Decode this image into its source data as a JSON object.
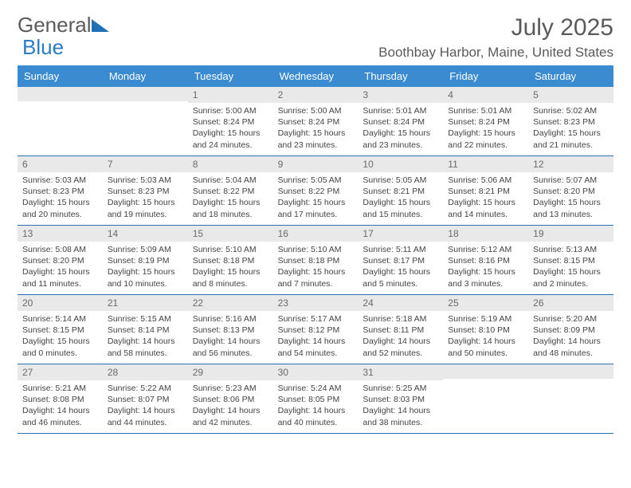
{
  "brand": {
    "part1": "General",
    "part2": "Blue",
    "tri_color": "#1f6fb5"
  },
  "title": "July 2025",
  "location": "Boothbay Harbor, Maine, United States",
  "accent_color": "#3b8bd0",
  "dayheads": [
    "Sunday",
    "Monday",
    "Tuesday",
    "Wednesday",
    "Thursday",
    "Friday",
    "Saturday"
  ],
  "weeks": [
    [
      {
        "n": "",
        "lines": []
      },
      {
        "n": "",
        "lines": []
      },
      {
        "n": "1",
        "lines": [
          "Sunrise: 5:00 AM",
          "Sunset: 8:24 PM",
          "Daylight: 15 hours",
          "and 24 minutes."
        ]
      },
      {
        "n": "2",
        "lines": [
          "Sunrise: 5:00 AM",
          "Sunset: 8:24 PM",
          "Daylight: 15 hours",
          "and 23 minutes."
        ]
      },
      {
        "n": "3",
        "lines": [
          "Sunrise: 5:01 AM",
          "Sunset: 8:24 PM",
          "Daylight: 15 hours",
          "and 23 minutes."
        ]
      },
      {
        "n": "4",
        "lines": [
          "Sunrise: 5:01 AM",
          "Sunset: 8:24 PM",
          "Daylight: 15 hours",
          "and 22 minutes."
        ]
      },
      {
        "n": "5",
        "lines": [
          "Sunrise: 5:02 AM",
          "Sunset: 8:23 PM",
          "Daylight: 15 hours",
          "and 21 minutes."
        ]
      }
    ],
    [
      {
        "n": "6",
        "lines": [
          "Sunrise: 5:03 AM",
          "Sunset: 8:23 PM",
          "Daylight: 15 hours",
          "and 20 minutes."
        ]
      },
      {
        "n": "7",
        "lines": [
          "Sunrise: 5:03 AM",
          "Sunset: 8:23 PM",
          "Daylight: 15 hours",
          "and 19 minutes."
        ]
      },
      {
        "n": "8",
        "lines": [
          "Sunrise: 5:04 AM",
          "Sunset: 8:22 PM",
          "Daylight: 15 hours",
          "and 18 minutes."
        ]
      },
      {
        "n": "9",
        "lines": [
          "Sunrise: 5:05 AM",
          "Sunset: 8:22 PM",
          "Daylight: 15 hours",
          "and 17 minutes."
        ]
      },
      {
        "n": "10",
        "lines": [
          "Sunrise: 5:05 AM",
          "Sunset: 8:21 PM",
          "Daylight: 15 hours",
          "and 15 minutes."
        ]
      },
      {
        "n": "11",
        "lines": [
          "Sunrise: 5:06 AM",
          "Sunset: 8:21 PM",
          "Daylight: 15 hours",
          "and 14 minutes."
        ]
      },
      {
        "n": "12",
        "lines": [
          "Sunrise: 5:07 AM",
          "Sunset: 8:20 PM",
          "Daylight: 15 hours",
          "and 13 minutes."
        ]
      }
    ],
    [
      {
        "n": "13",
        "lines": [
          "Sunrise: 5:08 AM",
          "Sunset: 8:20 PM",
          "Daylight: 15 hours",
          "and 11 minutes."
        ]
      },
      {
        "n": "14",
        "lines": [
          "Sunrise: 5:09 AM",
          "Sunset: 8:19 PM",
          "Daylight: 15 hours",
          "and 10 minutes."
        ]
      },
      {
        "n": "15",
        "lines": [
          "Sunrise: 5:10 AM",
          "Sunset: 8:18 PM",
          "Daylight: 15 hours",
          "and 8 minutes."
        ]
      },
      {
        "n": "16",
        "lines": [
          "Sunrise: 5:10 AM",
          "Sunset: 8:18 PM",
          "Daylight: 15 hours",
          "and 7 minutes."
        ]
      },
      {
        "n": "17",
        "lines": [
          "Sunrise: 5:11 AM",
          "Sunset: 8:17 PM",
          "Daylight: 15 hours",
          "and 5 minutes."
        ]
      },
      {
        "n": "18",
        "lines": [
          "Sunrise: 5:12 AM",
          "Sunset: 8:16 PM",
          "Daylight: 15 hours",
          "and 3 minutes."
        ]
      },
      {
        "n": "19",
        "lines": [
          "Sunrise: 5:13 AM",
          "Sunset: 8:15 PM",
          "Daylight: 15 hours",
          "and 2 minutes."
        ]
      }
    ],
    [
      {
        "n": "20",
        "lines": [
          "Sunrise: 5:14 AM",
          "Sunset: 8:15 PM",
          "Daylight: 15 hours",
          "and 0 minutes."
        ]
      },
      {
        "n": "21",
        "lines": [
          "Sunrise: 5:15 AM",
          "Sunset: 8:14 PM",
          "Daylight: 14 hours",
          "and 58 minutes."
        ]
      },
      {
        "n": "22",
        "lines": [
          "Sunrise: 5:16 AM",
          "Sunset: 8:13 PM",
          "Daylight: 14 hours",
          "and 56 minutes."
        ]
      },
      {
        "n": "23",
        "lines": [
          "Sunrise: 5:17 AM",
          "Sunset: 8:12 PM",
          "Daylight: 14 hours",
          "and 54 minutes."
        ]
      },
      {
        "n": "24",
        "lines": [
          "Sunrise: 5:18 AM",
          "Sunset: 8:11 PM",
          "Daylight: 14 hours",
          "and 52 minutes."
        ]
      },
      {
        "n": "25",
        "lines": [
          "Sunrise: 5:19 AM",
          "Sunset: 8:10 PM",
          "Daylight: 14 hours",
          "and 50 minutes."
        ]
      },
      {
        "n": "26",
        "lines": [
          "Sunrise: 5:20 AM",
          "Sunset: 8:09 PM",
          "Daylight: 14 hours",
          "and 48 minutes."
        ]
      }
    ],
    [
      {
        "n": "27",
        "lines": [
          "Sunrise: 5:21 AM",
          "Sunset: 8:08 PM",
          "Daylight: 14 hours",
          "and 46 minutes."
        ]
      },
      {
        "n": "28",
        "lines": [
          "Sunrise: 5:22 AM",
          "Sunset: 8:07 PM",
          "Daylight: 14 hours",
          "and 44 minutes."
        ]
      },
      {
        "n": "29",
        "lines": [
          "Sunrise: 5:23 AM",
          "Sunset: 8:06 PM",
          "Daylight: 14 hours",
          "and 42 minutes."
        ]
      },
      {
        "n": "30",
        "lines": [
          "Sunrise: 5:24 AM",
          "Sunset: 8:05 PM",
          "Daylight: 14 hours",
          "and 40 minutes."
        ]
      },
      {
        "n": "31",
        "lines": [
          "Sunrise: 5:25 AM",
          "Sunset: 8:03 PM",
          "Daylight: 14 hours",
          "and 38 minutes."
        ]
      },
      {
        "n": "",
        "lines": []
      },
      {
        "n": "",
        "lines": []
      }
    ]
  ]
}
